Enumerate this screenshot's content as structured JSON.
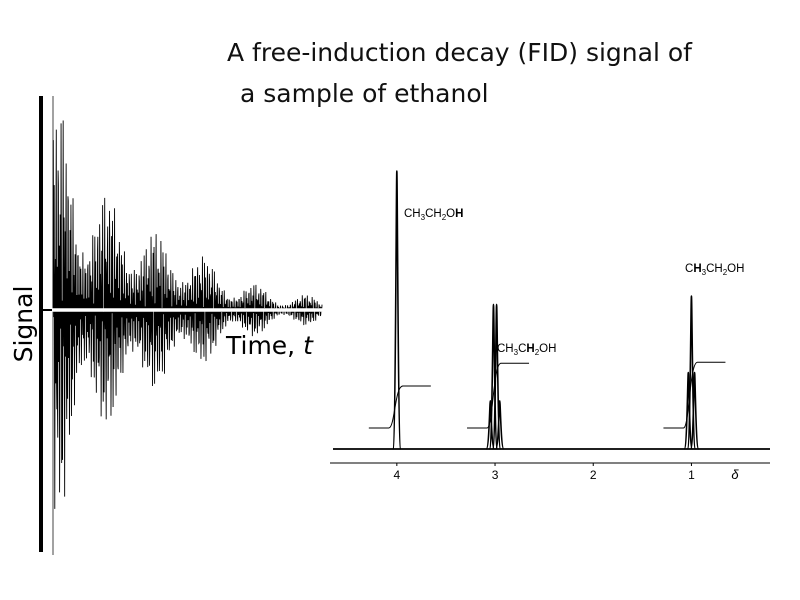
{
  "title": {
    "line1": "A free-induction decay (FID) signal of",
    "line2": "a sample of ethanol"
  },
  "chart_data": [
    {
      "type": "line",
      "name": "fid",
      "ylabel": "Signal",
      "xlabel_prefix": "Time, ",
      "xlabel_var": "t",
      "color": "#000000",
      "envelope": {
        "bursts": [
          {
            "t": 0.02,
            "amp": 1.0,
            "width": 0.045
          },
          {
            "t": 0.2,
            "amp": 0.55,
            "width": 0.05
          },
          {
            "t": 0.38,
            "amp": 0.37,
            "width": 0.05
          },
          {
            "t": 0.56,
            "amp": 0.25,
            "width": 0.05
          },
          {
            "t": 0.75,
            "amp": 0.12,
            "width": 0.045
          },
          {
            "t": 0.94,
            "amp": 0.07,
            "width": 0.04
          }
        ],
        "decay": 0.55
      }
    },
    {
      "type": "line",
      "name": "nmr-spectrum",
      "xlabel": "δ",
      "x_ticks": [
        4,
        3,
        2,
        1
      ],
      "xlim": [
        4.65,
        0.2
      ],
      "color": "#000000",
      "peaks": [
        {
          "delta": 4.0,
          "height": 1.0,
          "multiplicity": 1
        },
        {
          "delta": 3.0,
          "height": 0.52,
          "multiplicity": 4
        },
        {
          "delta": 1.0,
          "height": 0.55,
          "multiplicity": 3
        }
      ],
      "annotations": [
        {
          "delta": 4.0,
          "pre": "CH",
          "s1": "3",
          "mid": "CH",
          "s2": "2",
          "post": "O",
          "bold": "H",
          "tail": ""
        },
        {
          "delta": 3.0,
          "pre": "CH",
          "s1": "3",
          "mid": "C",
          "bold": "H",
          "s2": "2",
          "post": "OH",
          "tail": ""
        },
        {
          "delta": 1.0,
          "pre": "C",
          "bold": "H",
          "s1": "3",
          "mid": "CH",
          "s2": "2",
          "post": "OH",
          "tail": ""
        }
      ]
    }
  ]
}
